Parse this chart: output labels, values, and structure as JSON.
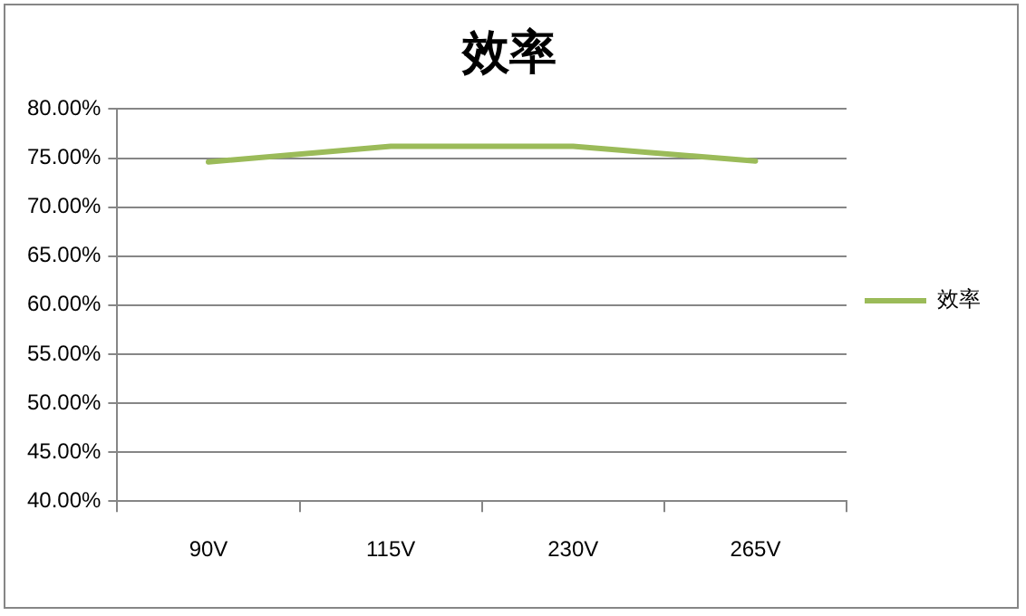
{
  "chart_data": {
    "type": "line",
    "title": "效率",
    "categories": [
      "90V",
      "115V",
      "230V",
      "265V"
    ],
    "series": [
      {
        "name": "效率",
        "color": "#9bbb59",
        "values": [
          74.6,
          76.2,
          76.2,
          74.7
        ]
      }
    ],
    "ylim": [
      40,
      80
    ],
    "yticks": [
      {
        "value": 40,
        "label": "40.00%"
      },
      {
        "value": 45,
        "label": "45.00%"
      },
      {
        "value": 50,
        "label": "50.00%"
      },
      {
        "value": 55,
        "label": "55.00%"
      },
      {
        "value": 60,
        "label": "60.00%"
      },
      {
        "value": 65,
        "label": "65.00%"
      },
      {
        "value": 70,
        "label": "70.00%"
      },
      {
        "value": 75,
        "label": "75.00%"
      },
      {
        "value": 80,
        "label": "80.00%"
      }
    ],
    "grid": "y",
    "legend": "right",
    "marker": "none",
    "line_style": "solid"
  }
}
